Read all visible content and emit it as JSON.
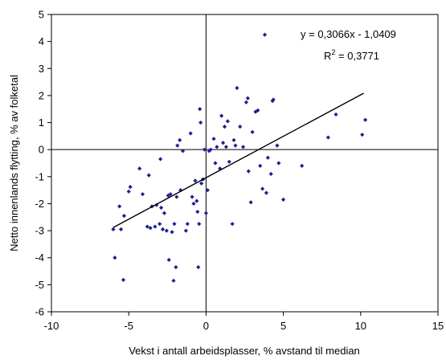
{
  "chart_data": {
    "type": "scatter",
    "xlabel": "Vekst i antall arbeidsplasser, % avstand til median",
    "ylabel": "Netto innenlands flytting, % av folketal",
    "xlim": [
      -10,
      15
    ],
    "ylim": [
      -6,
      5
    ],
    "xticks": [
      "-10",
      "-5",
      "0",
      "5",
      "10",
      "15"
    ],
    "yticks": [
      "5",
      "4",
      "3",
      "2",
      "1",
      "0",
      "-1",
      "-2",
      "-3",
      "-4",
      "-5",
      "-6"
    ],
    "grid": false,
    "marker_color": "#1f1f8f",
    "trendline": {
      "slope": 0.3066,
      "intercept": -1.0409,
      "x_range": [
        -6.0,
        10.2
      ],
      "equation_text": "y = 0,3066x - 1,0409",
      "r2_prefix": "R",
      "r2_sup": "2",
      "r2_value": " = 0,3771"
    },
    "points": [
      [
        -6.0,
        -2.95
      ],
      [
        -5.9,
        -4.0
      ],
      [
        -5.6,
        -2.1
      ],
      [
        -5.5,
        -2.95
      ],
      [
        -5.3,
        -2.45
      ],
      [
        -5.35,
        -4.82
      ],
      [
        -5.0,
        -1.55
      ],
      [
        -4.9,
        -1.38
      ],
      [
        -4.3,
        -0.7
      ],
      [
        -4.1,
        -1.65
      ],
      [
        -3.8,
        -2.85
      ],
      [
        -3.7,
        -0.95
      ],
      [
        -3.6,
        -2.9
      ],
      [
        -3.5,
        -2.1
      ],
      [
        -3.3,
        -2.85
      ],
      [
        -3.2,
        -2.05
      ],
      [
        -3.0,
        -2.75
      ],
      [
        -2.95,
        -0.35
      ],
      [
        -2.9,
        -2.15
      ],
      [
        -2.8,
        -2.95
      ],
      [
        -2.7,
        -2.35
      ],
      [
        -2.55,
        -3.0
      ],
      [
        -2.45,
        -1.7
      ],
      [
        -2.4,
        -4.08
      ],
      [
        -2.3,
        -1.65
      ],
      [
        -2.2,
        -3.05
      ],
      [
        -2.1,
        -4.85
      ],
      [
        -2.05,
        -2.75
      ],
      [
        -1.95,
        -4.35
      ],
      [
        -1.9,
        -1.75
      ],
      [
        -1.85,
        0.15
      ],
      [
        -1.7,
        0.35
      ],
      [
        -1.65,
        -1.5
      ],
      [
        -1.5,
        -0.05
      ],
      [
        -1.3,
        -3.0
      ],
      [
        -1.2,
        -2.75
      ],
      [
        -1.0,
        0.6
      ],
      [
        -0.9,
        -1.75
      ],
      [
        -0.8,
        -2.0
      ],
      [
        -0.7,
        -1.15
      ],
      [
        -0.6,
        -1.9
      ],
      [
        -0.55,
        -2.3
      ],
      [
        -0.5,
        -4.35
      ],
      [
        -0.45,
        -2.75
      ],
      [
        -0.4,
        1.5
      ],
      [
        -0.35,
        1.0
      ],
      [
        -0.3,
        -1.25
      ],
      [
        -0.2,
        -1.1
      ],
      [
        -0.1,
        0.0
      ],
      [
        0.0,
        -2.35
      ],
      [
        0.1,
        -1.5
      ],
      [
        0.2,
        -0.05
      ],
      [
        0.3,
        0.0
      ],
      [
        0.5,
        0.4
      ],
      [
        0.6,
        -0.5
      ],
      [
        0.7,
        0.1
      ],
      [
        0.9,
        -0.7
      ],
      [
        1.0,
        1.25
      ],
      [
        1.1,
        0.25
      ],
      [
        1.2,
        0.85
      ],
      [
        1.3,
        0.1
      ],
      [
        1.4,
        1.05
      ],
      [
        1.5,
        -0.45
      ],
      [
        1.7,
        -2.75
      ],
      [
        1.8,
        0.35
      ],
      [
        1.9,
        0.15
      ],
      [
        2.0,
        2.28
      ],
      [
        2.2,
        0.85
      ],
      [
        2.4,
        0.1
      ],
      [
        2.6,
        1.75
      ],
      [
        2.7,
        1.9
      ],
      [
        2.75,
        -0.8
      ],
      [
        2.9,
        -1.95
      ],
      [
        3.0,
        0.65
      ],
      [
        3.2,
        1.4
      ],
      [
        3.35,
        1.45
      ],
      [
        3.5,
        -0.6
      ],
      [
        3.65,
        -1.45
      ],
      [
        3.8,
        4.25
      ],
      [
        3.9,
        -1.6
      ],
      [
        4.0,
        -0.3
      ],
      [
        4.2,
        -0.9
      ],
      [
        4.3,
        1.8
      ],
      [
        4.35,
        1.85
      ],
      [
        4.6,
        0.15
      ],
      [
        4.7,
        -0.5
      ],
      [
        5.0,
        -1.85
      ],
      [
        6.2,
        -0.6
      ],
      [
        7.9,
        0.45
      ],
      [
        8.4,
        1.3
      ],
      [
        10.1,
        0.55
      ],
      [
        10.3,
        1.1
      ]
    ]
  }
}
